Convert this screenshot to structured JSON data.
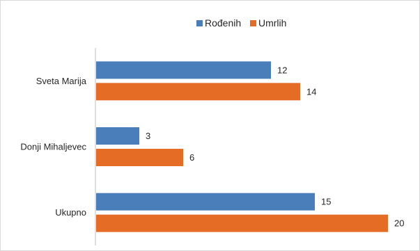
{
  "chart_data": {
    "type": "bar",
    "orientation": "horizontal",
    "categories": [
      "Sveta Marija",
      "Donji Mihaljevec",
      "Ukupno"
    ],
    "series": [
      {
        "name": "Rođenih",
        "values": [
          12,
          3,
          15
        ],
        "color": "#4a7ebb"
      },
      {
        "name": "Umrlih",
        "values": [
          14,
          6,
          20
        ],
        "color": "#e46c24"
      }
    ],
    "title": "",
    "xlabel": "",
    "ylabel": "",
    "xlim": [
      0,
      20
    ],
    "grid": false,
    "legend": "top-center",
    "data_labels": true
  }
}
